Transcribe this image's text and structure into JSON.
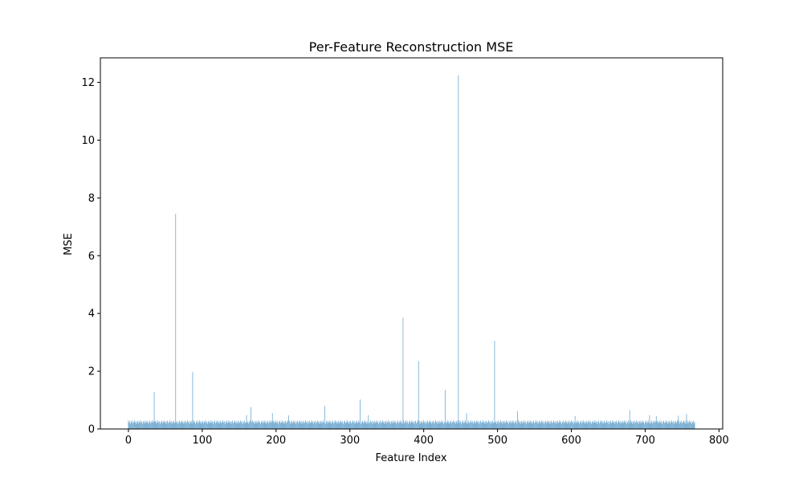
{
  "chart_data": {
    "type": "bar",
    "title": "Per-Feature Reconstruction MSE",
    "xlabel": "Feature Index",
    "ylabel": "MSE",
    "xlim": [
      -38,
      805
    ],
    "ylim": [
      0,
      12.85
    ],
    "xticks": [
      0,
      100,
      200,
      300,
      400,
      500,
      600,
      700,
      800
    ],
    "yticks": [
      0,
      2,
      4,
      6,
      8,
      10,
      12
    ],
    "bar_color": "#1f77b4",
    "bar_alpha": 0.7,
    "grid": false,
    "n_features": 768,
    "baseline_values": [
      0.3,
      0.22,
      0.27,
      0.18,
      0.25,
      0.29,
      0.2,
      0.24
    ],
    "spikes": [
      {
        "x": 35,
        "value": 1.28
      },
      {
        "x": 64,
        "value": 7.45
      },
      {
        "x": 87,
        "value": 1.98
      },
      {
        "x": 160,
        "value": 0.48
      },
      {
        "x": 166,
        "value": 0.76
      },
      {
        "x": 195,
        "value": 0.55
      },
      {
        "x": 217,
        "value": 0.47
      },
      {
        "x": 266,
        "value": 0.8
      },
      {
        "x": 314,
        "value": 1.02
      },
      {
        "x": 325,
        "value": 0.48
      },
      {
        "x": 372,
        "value": 3.85
      },
      {
        "x": 393,
        "value": 2.35
      },
      {
        "x": 429,
        "value": 1.35
      },
      {
        "x": 447,
        "value": 12.25
      },
      {
        "x": 458,
        "value": 0.55
      },
      {
        "x": 496,
        "value": 3.05
      },
      {
        "x": 527,
        "value": 0.62
      },
      {
        "x": 605,
        "value": 0.45
      },
      {
        "x": 679,
        "value": 0.65
      },
      {
        "x": 706,
        "value": 0.48
      },
      {
        "x": 715,
        "value": 0.45
      },
      {
        "x": 745,
        "value": 0.46
      },
      {
        "x": 756,
        "value": 0.52
      }
    ]
  }
}
